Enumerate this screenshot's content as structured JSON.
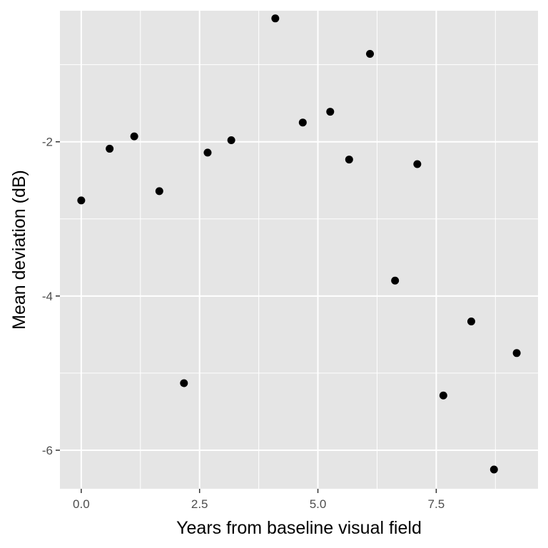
{
  "chart_data": {
    "type": "scatter",
    "xlabel": "Years from baseline visual field",
    "ylabel": "Mean deviation (dB)",
    "xlim": [
      -0.45,
      9.65
    ],
    "ylim": [
      -6.5,
      -0.3
    ],
    "x_ticks": [
      0.0,
      2.5,
      5.0,
      7.5
    ],
    "x_tick_labels": [
      "0.0",
      "2.5",
      "5.0",
      "7.5"
    ],
    "x_minor_ticks": [
      1.25,
      3.75,
      6.25,
      8.75
    ],
    "y_ticks": [
      -2,
      -4,
      -6
    ],
    "y_tick_labels": [
      "-2",
      "-4",
      "-6"
    ],
    "y_minor_ticks": [
      -1,
      -3,
      -5
    ],
    "grid": true,
    "legend": "none",
    "colors": {
      "panel": "#e5e5e5",
      "grid": "#ffffff",
      "point": "#000000"
    },
    "points": [
      {
        "x": 0.0,
        "y": -2.76
      },
      {
        "x": 0.6,
        "y": -2.09
      },
      {
        "x": 1.12,
        "y": -1.93
      },
      {
        "x": 1.65,
        "y": -2.64
      },
      {
        "x": 2.17,
        "y": -5.13
      },
      {
        "x": 2.67,
        "y": -2.14
      },
      {
        "x": 3.17,
        "y": -1.98
      },
      {
        "x": 4.1,
        "y": -0.4
      },
      {
        "x": 4.68,
        "y": -1.75
      },
      {
        "x": 5.26,
        "y": -1.61
      },
      {
        "x": 5.66,
        "y": -2.23
      },
      {
        "x": 6.1,
        "y": -0.86
      },
      {
        "x": 6.63,
        "y": -3.8
      },
      {
        "x": 7.1,
        "y": -2.29
      },
      {
        "x": 7.65,
        "y": -5.29
      },
      {
        "x": 8.24,
        "y": -4.33
      },
      {
        "x": 8.72,
        "y": -6.25
      },
      {
        "x": 9.2,
        "y": -4.74
      }
    ]
  }
}
